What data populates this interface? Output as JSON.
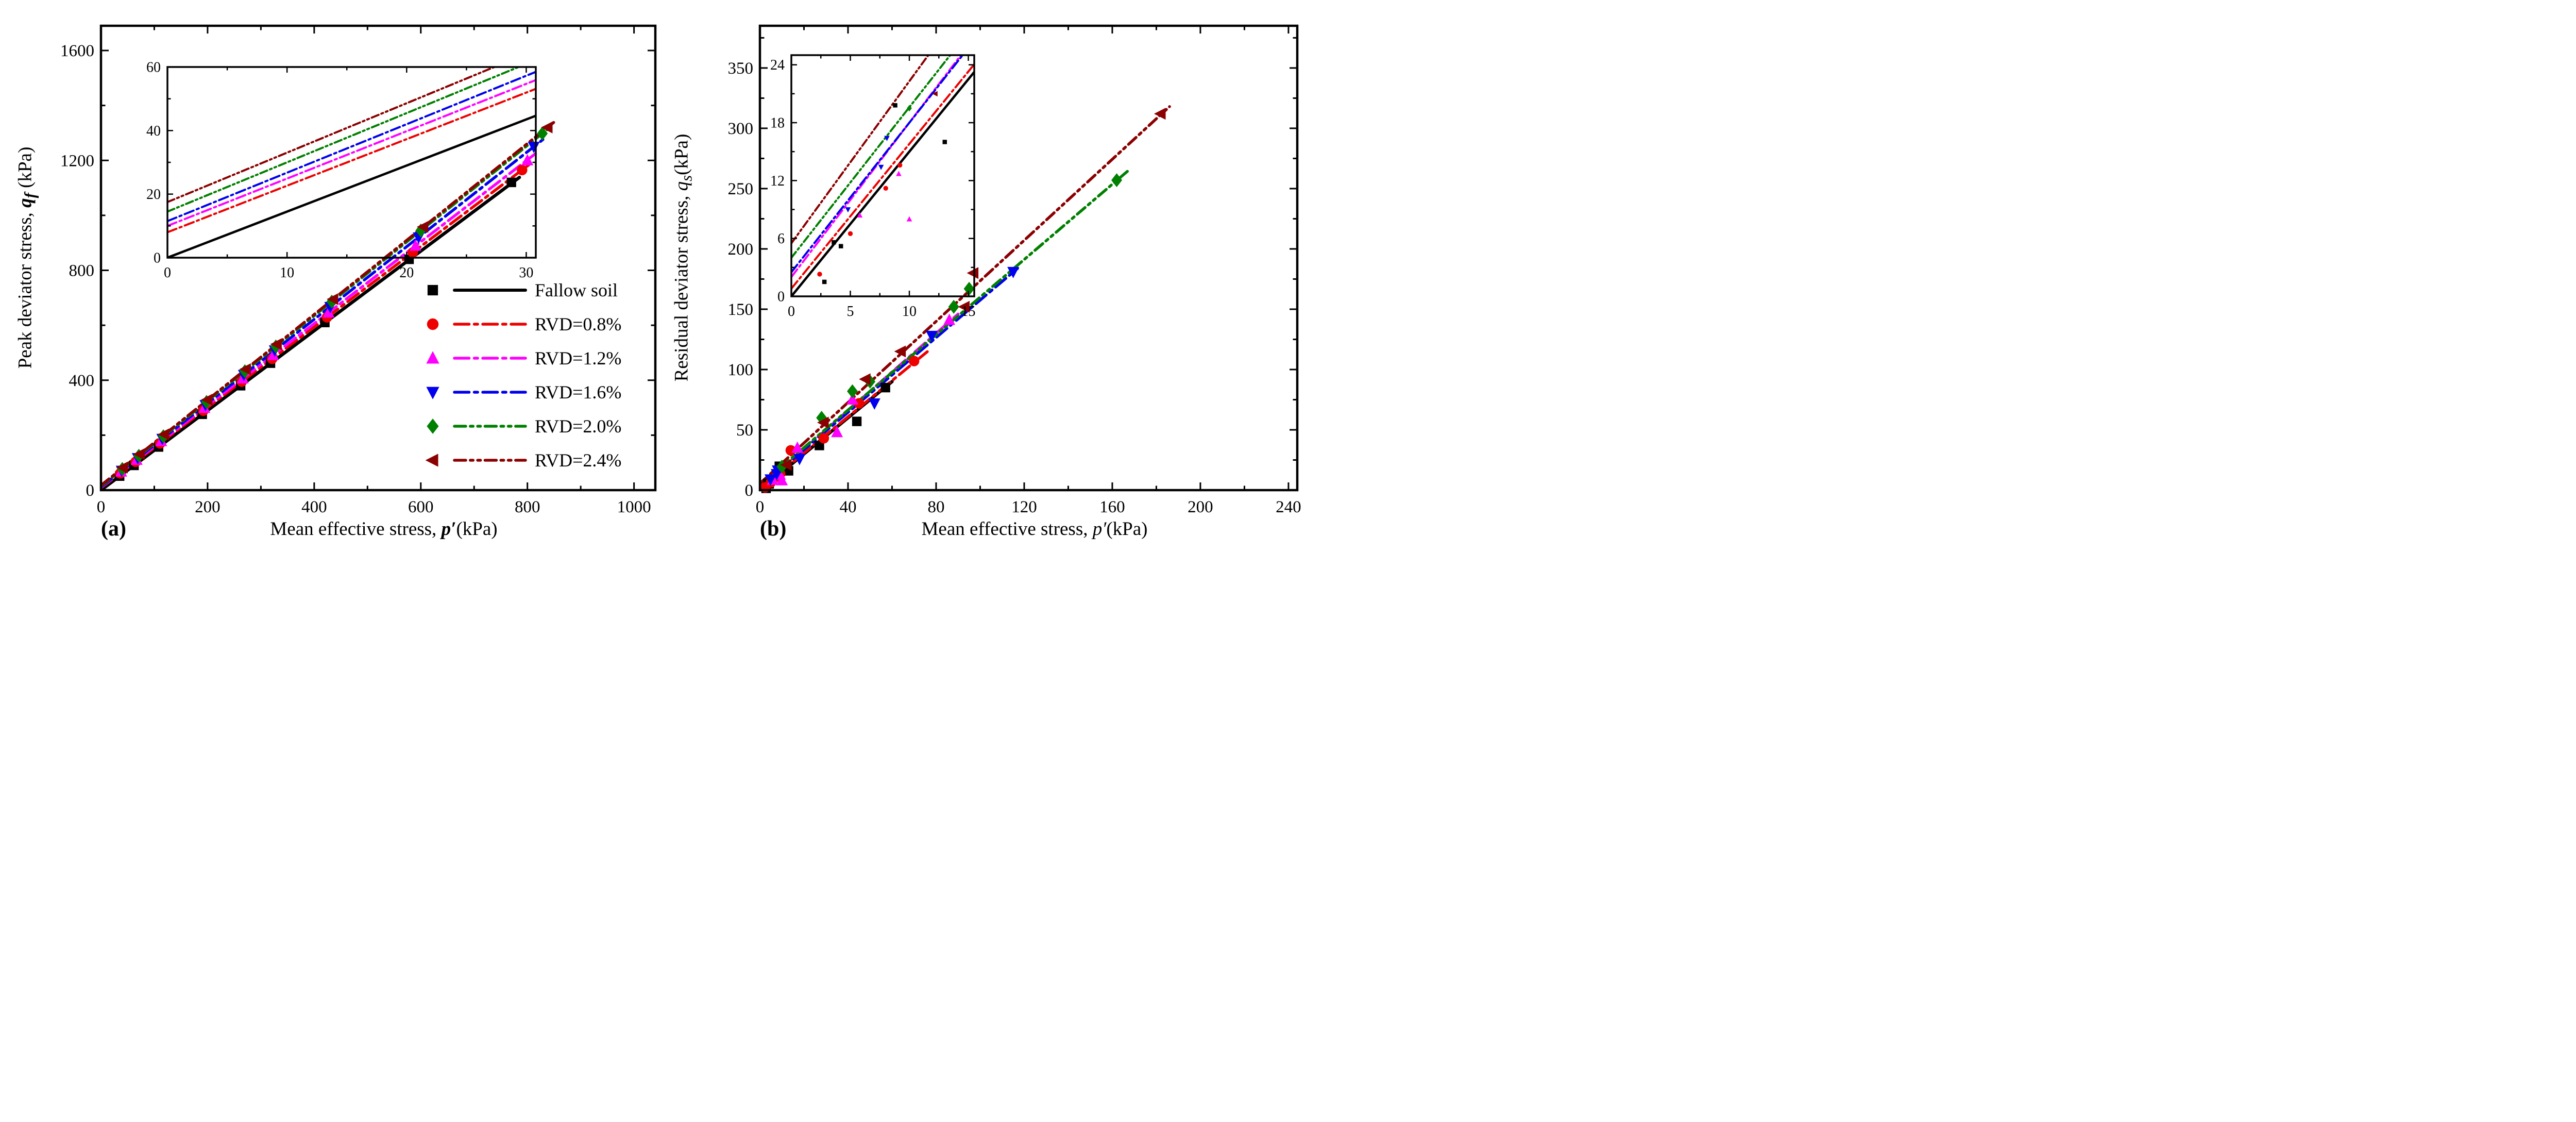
{
  "figure": {
    "background": "#ffffff",
    "description": "Two-panel scatter plot: peak and residual deviator stress versus mean effective stress for fallow soil and root-reinforced soils (RVD percentages), each panel with a zoomed inset near the origin."
  },
  "legend": {
    "position": "inside panel (a), right of center",
    "items": [
      "Fallow soil",
      "RVD=0.8%",
      "RVD=1.2%",
      "RVD=1.6%",
      "RVD=2.0%",
      "RVD=2.4%"
    ]
  },
  "chart_data": [
    {
      "id": "a",
      "type": "scatter",
      "panel_label": "(a)",
      "xlabel": {
        "prefix": "Mean effective stress, ",
        "sym": "p′",
        "sub": "",
        "suffix": "(kPa)",
        "sym_bold": true
      },
      "ylabel": {
        "prefix": "Peak deviator stress, ",
        "sym": "q",
        "sub": "f",
        "suffix": " (kPa)",
        "sym_bold": true
      },
      "xlim": [
        0,
        1040
      ],
      "xticks": [
        0,
        200,
        400,
        600,
        800,
        1000
      ],
      "x_minor": 100,
      "ylim": [
        0,
        1690
      ],
      "yticks": [
        0,
        400,
        800,
        1200,
        1600
      ],
      "y_minor": 200,
      "grid": false,
      "show_legend": true,
      "inset": {
        "xlim": [
          0,
          30.8
        ],
        "xticks": [
          0,
          10,
          20,
          30
        ],
        "x_minor": 5,
        "ylim": [
          0,
          60
        ],
        "yticks": [
          0,
          20,
          40,
          60
        ],
        "y_minor": 10,
        "show_points": false
      },
      "series": [
        {
          "name": "Fallow soil",
          "color": "#000000",
          "marker": "square",
          "dash": "solid",
          "line": {
            "slope": 1.45,
            "intercept": 0,
            "x_end": 785
          },
          "points": [
            [
              35,
              51
            ],
            [
              62,
              90
            ],
            [
              108,
              157
            ],
            [
              190,
              276
            ],
            [
              262,
              380
            ],
            [
              318,
              462
            ],
            [
              420,
              610
            ],
            [
              578,
              840
            ],
            [
              770,
              1120
            ]
          ]
        },
        {
          "name": "RVD=0.8%",
          "color": "#EE0000",
          "marker": "circle",
          "dash": "dashdot",
          "line": {
            "slope": 1.465,
            "intercept": 8,
            "x_end": 805
          },
          "points": [
            [
              36,
              61
            ],
            [
              65,
              103
            ],
            [
              111,
              170
            ],
            [
              192,
              289
            ],
            [
              264,
              395
            ],
            [
              321,
              478
            ],
            [
              424,
              629
            ],
            [
              585,
              865
            ],
            [
              790,
              1165
            ]
          ]
        },
        {
          "name": "RVD=1.2%",
          "color": "#FF00FF",
          "marker": "triangle-up",
          "dash": "dashdot",
          "line": {
            "slope": 1.49,
            "intercept": 10,
            "x_end": 815
          },
          "points": [
            [
              38,
              67
            ],
            [
              67,
              110
            ],
            [
              113,
              178
            ],
            [
              194,
              299
            ],
            [
              266,
              406
            ],
            [
              323,
              491
            ],
            [
              427,
              646
            ],
            [
              590,
              889
            ],
            [
              800,
              1200
            ]
          ]
        },
        {
          "name": "RVD=1.6%",
          "color": "#0000EE",
          "marker": "triangle-down",
          "dash": "dashdot",
          "line": {
            "slope": 1.525,
            "intercept": 11.5,
            "x_end": 830
          },
          "points": [
            [
              39,
              71
            ],
            [
              69,
              117
            ],
            [
              115,
              187
            ],
            [
              196,
              310
            ],
            [
              268,
              420
            ],
            [
              326,
              509
            ],
            [
              430,
              667
            ],
            [
              596,
              920
            ],
            [
              812,
              1250
            ]
          ]
        },
        {
          "name": "RVD=2.0%",
          "color": "#008000",
          "marker": "diamond",
          "dash": "dashdotdot",
          "line": {
            "slope": 1.55,
            "intercept": 14.5,
            "x_end": 845
          },
          "points": [
            [
              40,
              77
            ],
            [
              71,
              125
            ],
            [
              117,
              196
            ],
            [
              198,
              321
            ],
            [
              270,
              433
            ],
            [
              328,
              523
            ],
            [
              433,
              686
            ],
            [
              600,
              945
            ],
            [
              828,
              1298
            ]
          ]
        },
        {
          "name": "RVD=2.4%",
          "color": "#8B0000",
          "marker": "triangle-left",
          "dash": "dashdotdot",
          "line": {
            "slope": 1.555,
            "intercept": 17.5,
            "x_end": 855
          },
          "points": [
            [
              41,
              82
            ],
            [
              73,
              131
            ],
            [
              119,
              203
            ],
            [
              200,
              329
            ],
            [
              272,
              440
            ],
            [
              330,
              531
            ],
            [
              436,
              695
            ],
            [
              605,
              958
            ],
            [
              838,
              1320
            ]
          ]
        }
      ]
    },
    {
      "id": "b",
      "type": "scatter",
      "panel_label": "(b)",
      "xlabel": {
        "prefix": "Mean effective stress, ",
        "sym": "p′",
        "sub": "",
        "suffix": "(kPa)",
        "sym_bold": false
      },
      "ylabel": {
        "prefix": "Residual deviator stress, ",
        "sym": "q",
        "sub": "s",
        "suffix": "(kPa)",
        "sym_bold": false
      },
      "xlim": [
        0,
        244
      ],
      "xticks": [
        0,
        40,
        80,
        120,
        160,
        200,
        240
      ],
      "x_minor": 20,
      "ylim": [
        0,
        385
      ],
      "yticks": [
        0,
        50,
        100,
        150,
        200,
        250,
        300,
        350
      ],
      "y_minor": 25,
      "grid": false,
      "show_legend": false,
      "inset": {
        "xlim": [
          0,
          15.5
        ],
        "xticks": [
          0,
          5,
          10,
          15
        ],
        "x_minor": 2.5,
        "ylim": [
          0,
          25
        ],
        "yticks": [
          0,
          6,
          12,
          18,
          24
        ],
        "y_minor": 3,
        "show_points": true
      },
      "series": [
        {
          "name": "Fallow soil",
          "color": "#000000",
          "marker": "square",
          "dash": "solid",
          "line": {
            "slope": 1.5,
            "intercept": 0,
            "x_end": 60
          },
          "points": [
            [
              2.8,
              1.5
            ],
            [
              3.6,
              5.6
            ],
            [
              4.2,
              5.2
            ],
            [
              8.8,
              19.8
            ],
            [
              13,
              16
            ],
            [
              27,
              37
            ],
            [
              44,
              57
            ],
            [
              57,
              85
            ]
          ]
        },
        {
          "name": "RVD=0.8%",
          "color": "#EE0000",
          "marker": "circle",
          "dash": "dashdot",
          "line": {
            "slope": 1.5,
            "intercept": 0.8,
            "x_end": 76
          },
          "points": [
            [
              2.4,
              2.3
            ],
            [
              5,
              6.5
            ],
            [
              8,
              11.2
            ],
            [
              9.2,
              13.6
            ],
            [
              14,
              33
            ],
            [
              29,
              43
            ],
            [
              45,
              72
            ],
            [
              70,
              107
            ]
          ]
        },
        {
          "name": "RVD=1.2%",
          "color": "#FF00FF",
          "marker": "triangle-up",
          "dash": "dashdot",
          "line": {
            "slope": 1.6,
            "intercept": 2,
            "x_end": 90
          },
          "points": [
            [
              5.8,
              8.4
            ],
            [
              9.1,
              12.7
            ],
            [
              10,
              8
            ],
            [
              17,
              35
            ],
            [
              35,
              48
            ],
            [
              42,
              75
            ],
            [
              86,
              141
            ]
          ]
        },
        {
          "name": "RVD=1.6%",
          "color": "#0000EE",
          "marker": "triangle-down",
          "dash": "dashdot",
          "line": {
            "slope": 1.55,
            "intercept": 2.5,
            "x_end": 117
          },
          "points": [
            [
              4.8,
              9
            ],
            [
              7.6,
              13.4
            ],
            [
              8.1,
              16.4
            ],
            [
              18,
              26
            ],
            [
              52,
              72
            ],
            [
              78,
              128
            ],
            [
              115,
              181
            ]
          ]
        },
        {
          "name": "RVD=2.0%",
          "color": "#008000",
          "marker": "diamond",
          "dash": "dashdotdot",
          "line": {
            "slope": 1.56,
            "intercept": 4,
            "x_end": 167
          },
          "points": [
            [
              10,
              19.5
            ],
            [
              28,
              60
            ],
            [
              42,
              82
            ],
            [
              50,
              90
            ],
            [
              88,
              152
            ],
            [
              95,
              167
            ],
            [
              162,
              257
            ]
          ]
        },
        {
          "name": "RVD=2.4%",
          "color": "#8B0000",
          "marker": "triangle-left",
          "dash": "dashdotdot",
          "line": {
            "slope": 1.68,
            "intercept": 5.5,
            "x_end": 186
          },
          "points": [
            [
              12.2,
              21
            ],
            [
              29,
              56
            ],
            [
              48,
              92
            ],
            [
              64,
              115
            ],
            [
              93,
              152
            ],
            [
              97,
              180
            ],
            [
              182,
              312
            ]
          ]
        }
      ]
    }
  ]
}
